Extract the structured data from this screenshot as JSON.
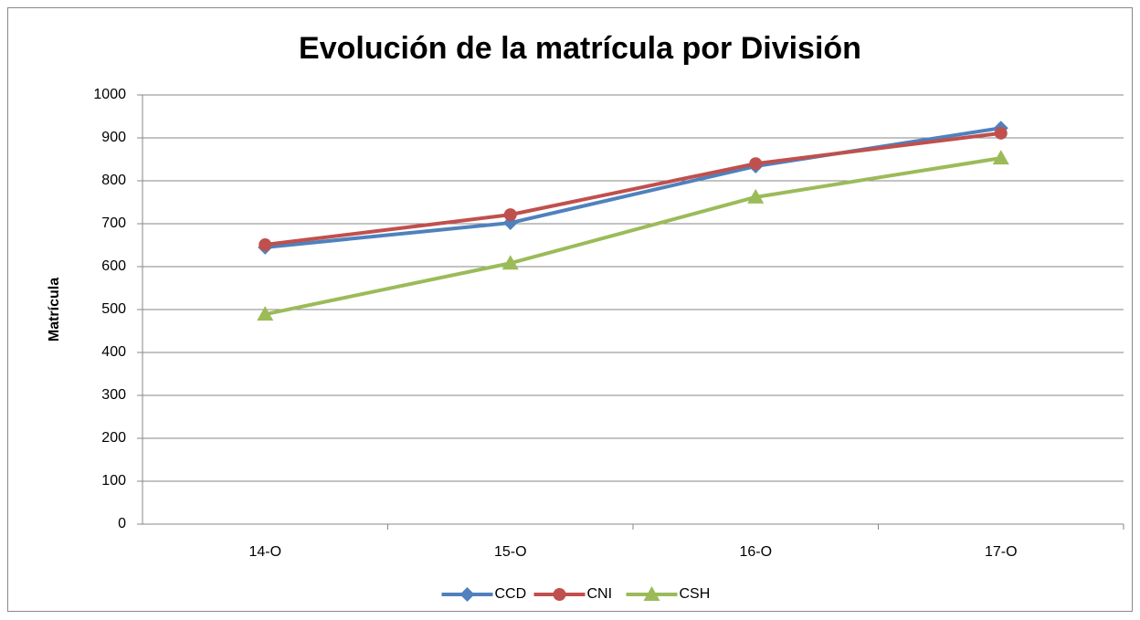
{
  "chart_data": {
    "type": "line",
    "title": "Evolución de la matrícula por División",
    "y_label": "Matrícula",
    "categories": [
      "14-O",
      "15-O",
      "16-O",
      "17-O"
    ],
    "series": [
      {
        "name": "CCD",
        "color": "#4f81bd",
        "marker": "diamond",
        "values": [
          645,
          702,
          834,
          923
        ]
      },
      {
        "name": "CNI",
        "color": "#c0504d",
        "marker": "circle",
        "values": [
          651,
          721,
          840,
          911
        ]
      },
      {
        "name": "CSH",
        "color": "#9bbb59",
        "marker": "triangle",
        "values": [
          489,
          608,
          762,
          853
        ]
      }
    ],
    "ylim": [
      0,
      1000
    ],
    "yticks": [
      0,
      100,
      200,
      300,
      400,
      500,
      600,
      700,
      800,
      900,
      1000
    ],
    "grid": true,
    "legend": "bottom"
  }
}
